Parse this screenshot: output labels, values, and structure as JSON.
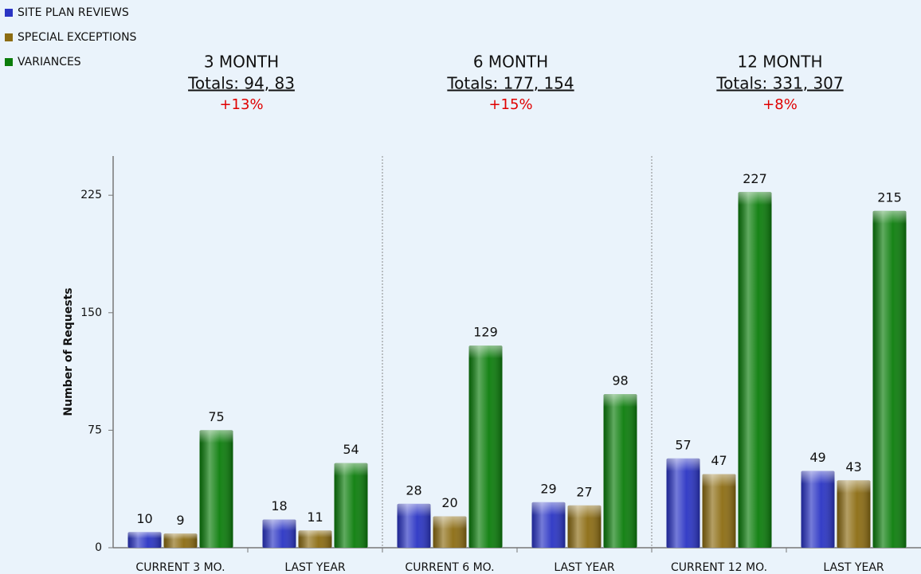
{
  "chart_data": {
    "type": "bar",
    "y_label": "Number of Requests",
    "categories": [
      "CURRENT 3 MO.",
      "LAST YEAR",
      "CURRENT 6 MO.",
      "LAST YEAR",
      "CURRENT 12 MO.",
      "LAST YEAR"
    ],
    "series": [
      {
        "name": "SITE PLAN REVIEWS",
        "color": "#2a34c4",
        "values": [
          10,
          18,
          28,
          29,
          57,
          49
        ]
      },
      {
        "name": "SPECIAL EXCEPTIONS",
        "color": "#8c6c12",
        "values": [
          9,
          11,
          20,
          27,
          47,
          43
        ]
      },
      {
        "name": "VARIANCES",
        "color": "#0b7d0b",
        "values": [
          75,
          54,
          129,
          98,
          227,
          215
        ]
      }
    ],
    "ylim": [
      0,
      250
    ],
    "yticks": [
      0,
      75,
      150,
      225
    ],
    "legend": "top-left",
    "panels": [
      {
        "title": "3 MONTH",
        "totals": "Totals: 94, 83",
        "change": "+13%"
      },
      {
        "title": "6 MONTH",
        "totals": "Totals: 177, 154",
        "change": "+15%"
      },
      {
        "title": "12 MONTH",
        "totals": "Totals: 331, 307",
        "change": "+8%"
      }
    ]
  }
}
